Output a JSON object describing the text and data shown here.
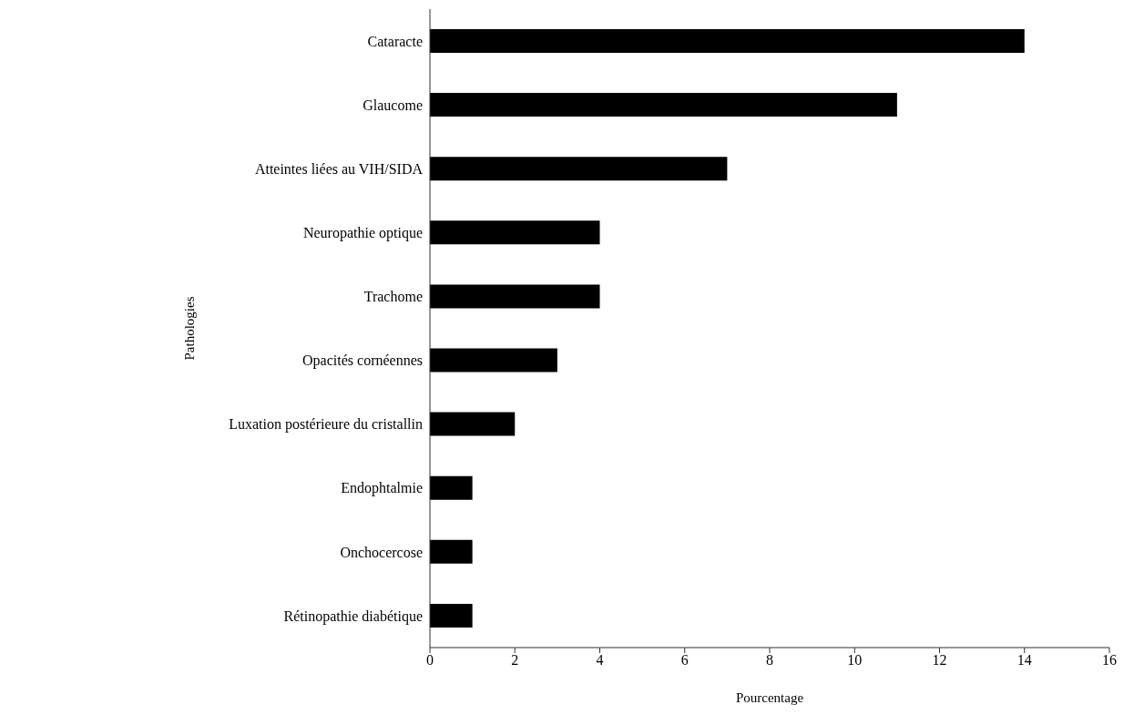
{
  "chart_data": {
    "type": "bar",
    "orientation": "horizontal",
    "xlabel": "Pourcentage",
    "ylabel": "Pathologies",
    "categories": [
      "Cataracte",
      "Glaucome",
      "Atteintes liées au VIH/SIDA",
      "Neuropathie optique",
      "Trachome",
      "Opacités cornéennes",
      "Luxation postérieure du cristallin",
      "Endophtalmie",
      "Onchocercose",
      "Rétinopathie diabétique"
    ],
    "values": [
      14,
      11,
      7,
      4,
      4,
      3,
      2,
      1,
      1,
      1
    ],
    "color": "#000000",
    "xlim": [
      0,
      16
    ],
    "xticks": [
      0,
      2,
      4,
      6,
      8,
      10,
      12,
      14,
      16
    ],
    "grid": false,
    "legend": false
  }
}
